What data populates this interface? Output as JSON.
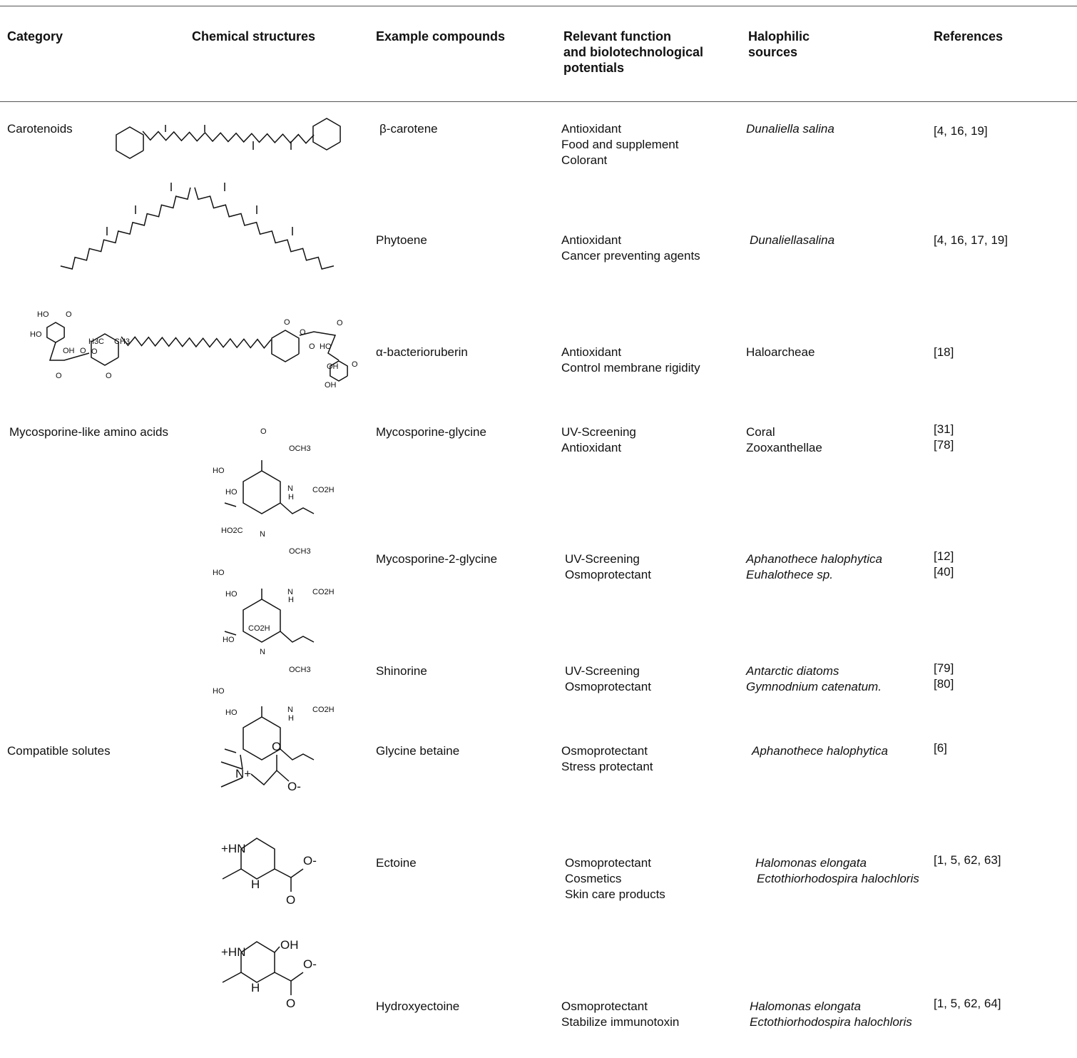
{
  "headers": [
    "Category",
    "Chemical structures",
    "Example compounds",
    "Relevant function and biolotechnological potentials",
    "Halophilic sources",
    "References"
  ],
  "header_lines": {
    "function": [
      "Relevant function",
      "and biolotechnological",
      "potentials"
    ],
    "sources": [
      "Halophilic",
      "sources"
    ]
  },
  "rows": [
    {
      "category": "Carotenoids",
      "compound": "β-carotene",
      "functions": [
        "Antioxidant",
        "Food and supplement",
        "Colorant"
      ],
      "sources": [
        "Dunaliella salina"
      ],
      "refs": [
        "[4, 16, 19]"
      ]
    },
    {
      "category": "",
      "compound": "Phytoene",
      "functions": [
        "Antioxidant",
        "Cancer preventing agents"
      ],
      "sources": [
        "Dunaliellasalina"
      ],
      "refs": [
        "[4, 16, 17, 19]"
      ]
    },
    {
      "category": "",
      "compound": "α-bacterioruberin",
      "functions": [
        "Antioxidant",
        "Control membrane rigidity"
      ],
      "sources": [
        "Haloarcheae"
      ],
      "refs": [
        "[18]"
      ]
    },
    {
      "category": "Mycosporine-like amino acids",
      "compound": "Mycosporine-glycine",
      "functions": [
        "UV-Screening",
        "Antioxidant"
      ],
      "sources": [
        "Coral",
        "Zooxanthellae"
      ],
      "refs": [
        "[31]",
        "[78]"
      ]
    },
    {
      "category": "",
      "compound": "Mycosporine-2-glycine",
      "functions": [
        "UV-Screening",
        "Osmoprotectant"
      ],
      "sources": [
        "Aphanothece halophytica",
        "Euhalothece sp."
      ],
      "refs": [
        "[12]",
        "[40]"
      ]
    },
    {
      "category": "",
      "compound": "Shinorine",
      "functions": [
        "UV-Screening",
        "Osmoprotectant"
      ],
      "sources": [
        "Antarctic diatoms",
        "Gymnodnium catenatum."
      ],
      "refs": [
        "[79]",
        "[80]"
      ]
    },
    {
      "category": "Compatible solutes",
      "compound": "Glycine betaine",
      "functions": [
        "Osmoprotectant",
        "Stress protectant"
      ],
      "sources": [
        "Aphanothece halophytica"
      ],
      "refs": [
        "[6]"
      ]
    },
    {
      "category": "",
      "compound": "Ectoine",
      "functions": [
        "Osmoprotectant",
        "Cosmetics",
        "Skin care products"
      ],
      "sources": [
        "Halomonas elongata",
        "Ectothiorhodospira halochloris"
      ],
      "refs": [
        "[1, 5, 62, 63]"
      ]
    },
    {
      "category": "",
      "compound": "Hydroxyectoine",
      "functions": [
        "Osmoprotectant",
        "Stabilize immunotoxin"
      ],
      "sources": [
        "Halomonas elongata",
        "Ectothiorhodospira halochloris"
      ],
      "refs": [
        "[1, 5, 62, 64]"
      ]
    }
  ],
  "structure_labels": {
    "bacterioruberin": [
      "HO",
      "O",
      "HO",
      "OH",
      "H3C",
      "CH3",
      "O",
      "O",
      "O",
      "O",
      "O",
      "HO",
      "O",
      "O",
      "O",
      "OH",
      "O",
      "OH"
    ],
    "mg": [
      "O",
      "OCH3",
      "HO",
      "HO",
      "N",
      "H",
      "CO2H"
    ],
    "m2g": [
      "HO2C",
      "N",
      "OCH3",
      "HO",
      "HO",
      "N",
      "H",
      "CO2H"
    ],
    "shin": [
      "CO2H",
      "HO",
      "N",
      "OCH3",
      "HO",
      "HO",
      "N",
      "H",
      "CO2H"
    ],
    "gb": [
      "O",
      "N+",
      "O-"
    ],
    "ect": [
      "+HN",
      "H",
      "O-",
      "O"
    ],
    "hect": [
      "+HN",
      "OH",
      "H",
      "O-",
      "O"
    ]
  },
  "source_italic": [
    true,
    true,
    false,
    "mixed",
    true,
    true,
    true,
    true,
    true
  ]
}
